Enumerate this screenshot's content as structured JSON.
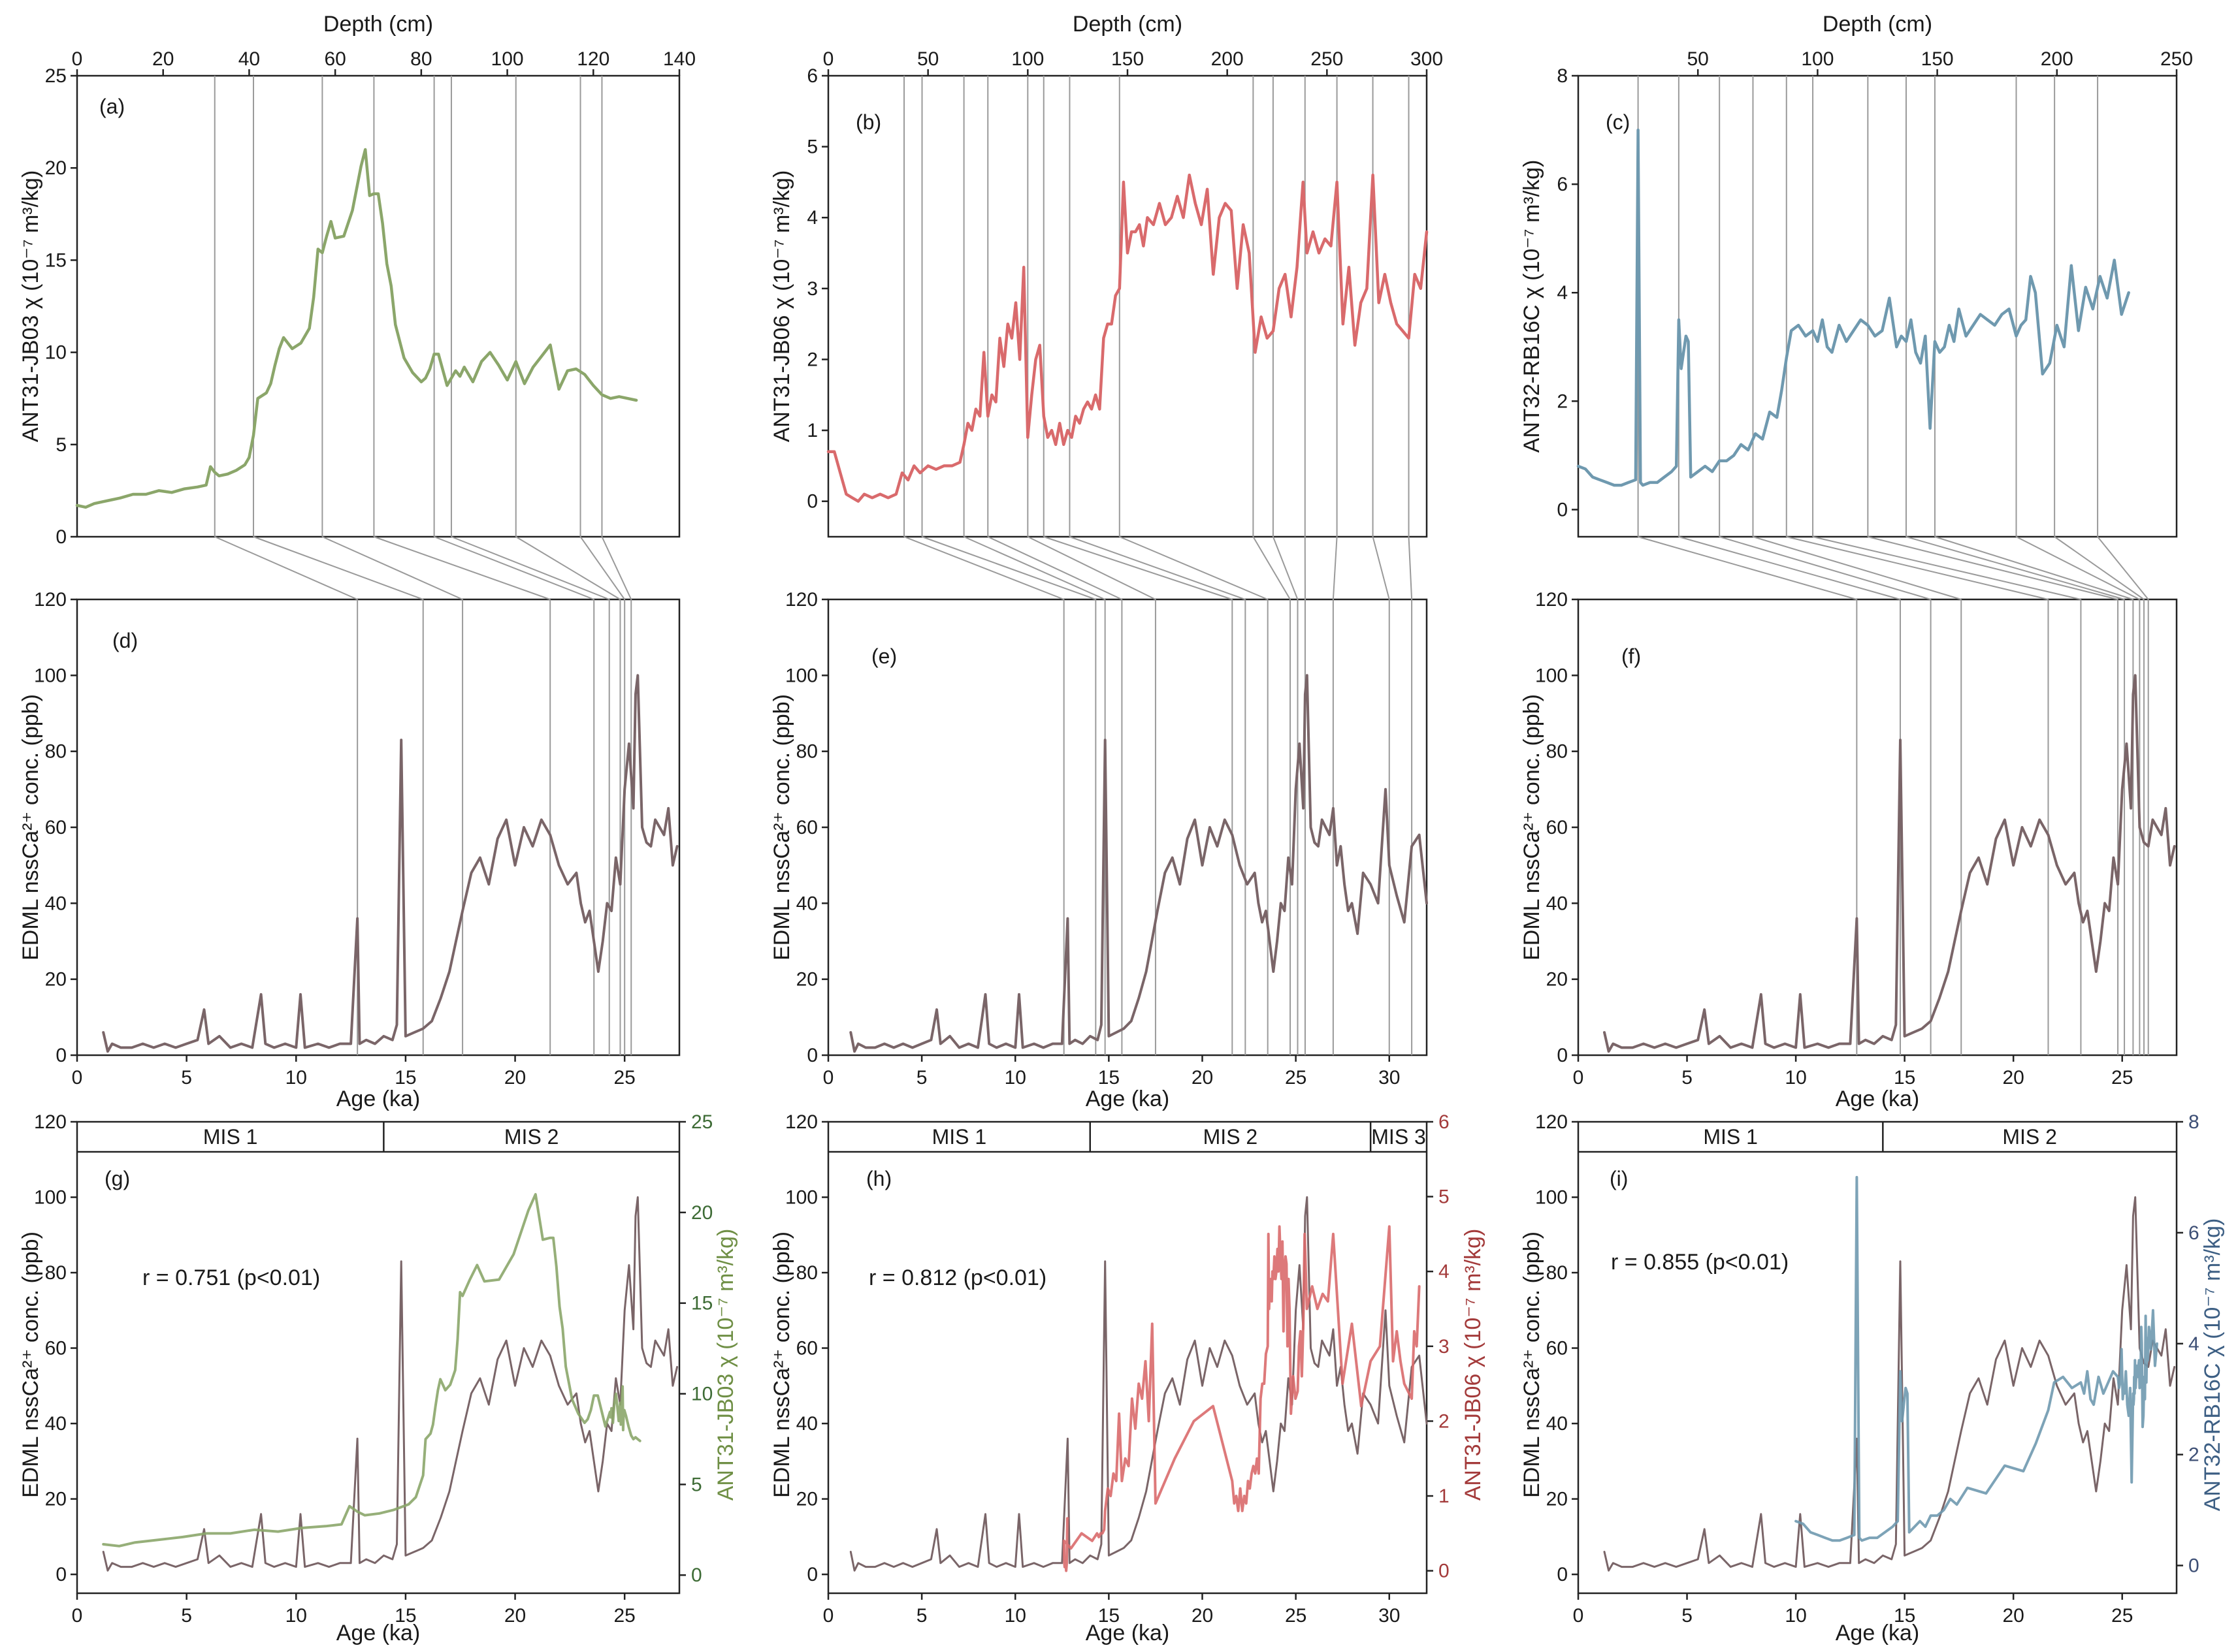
{
  "chart_data": [
    {
      "panel": "a",
      "type": "line",
      "label": "(a)",
      "xlabel": "Depth (cm)",
      "xlim": [
        0,
        140
      ],
      "xticks": [
        0,
        20,
        40,
        60,
        80,
        100,
        120,
        140
      ],
      "ylabel": "ANT31-JB03 χ (10⁻⁷ m³/kg)",
      "ylim": [
        0,
        25
      ],
      "yticks": [
        0,
        5,
        10,
        15,
        20,
        25
      ],
      "color": "#8BA66A",
      "x": [
        0,
        2,
        4,
        6,
        8,
        10,
        13,
        16,
        19,
        22,
        25,
        28,
        30,
        31,
        32,
        33,
        35,
        37,
        39,
        40,
        41,
        42,
        44,
        45,
        46,
        47,
        48,
        50,
        52,
        54,
        55,
        56,
        57,
        58,
        59,
        60,
        62,
        64,
        66,
        67,
        68,
        69,
        70,
        71,
        72,
        73,
        74,
        76,
        78,
        80,
        81,
        82,
        83,
        84,
        86,
        88,
        89,
        90,
        92,
        94,
        96,
        98,
        100,
        102,
        104,
        106,
        108,
        110,
        112,
        114,
        116,
        118,
        119,
        120,
        122,
        124,
        126,
        128,
        130
      ],
      "values": [
        1.7,
        1.6,
        1.8,
        1.9,
        2.0,
        2.1,
        2.3,
        2.3,
        2.5,
        2.4,
        2.6,
        2.7,
        2.8,
        3.8,
        3.5,
        3.3,
        3.4,
        3.6,
        3.9,
        4.3,
        5.5,
        7.5,
        7.8,
        8.3,
        9.3,
        10.2,
        10.8,
        10.2,
        10.5,
        11.3,
        13.0,
        15.6,
        15.4,
        16.3,
        17.1,
        16.2,
        16.3,
        17.7,
        20.1,
        21.0,
        18.5,
        18.6,
        18.6,
        17.0,
        14.8,
        13.6,
        11.5,
        9.7,
        8.9,
        8.4,
        8.6,
        9.1,
        9.9,
        9.9,
        8.2,
        9.0,
        8.7,
        9.2,
        8.4,
        9.5,
        10.0,
        9.3,
        8.5,
        9.5,
        8.3,
        9.2,
        9.8,
        10.4,
        8.0,
        9.0,
        9.1,
        8.8,
        8.5,
        8.2,
        7.7,
        7.5,
        7.6,
        7.5,
        7.4
      ],
      "guides_depth": [
        32,
        41,
        57,
        69,
        83,
        87,
        102,
        117,
        122
      ],
      "guides_age": [
        12.8,
        15.8,
        17.6,
        21.6,
        23.6,
        24.3,
        24.8,
        25.0,
        25.3
      ]
    },
    {
      "panel": "b",
      "type": "line",
      "label": "(b)",
      "xlabel": "Depth (cm)",
      "xlim": [
        0,
        300
      ],
      "xticks": [
        0,
        50,
        100,
        150,
        200,
        250,
        300
      ],
      "ylabel": "ANT31-JB06 χ (10⁻⁷ m³/kg)",
      "ylim": [
        -0.5,
        6
      ],
      "yticks": [
        0,
        1,
        2,
        3,
        4,
        5,
        6
      ],
      "color": "#D96A6C",
      "x": [
        0,
        3,
        6,
        9,
        12,
        15,
        18,
        22,
        26,
        30,
        34,
        37,
        40,
        43,
        46,
        50,
        54,
        58,
        62,
        66,
        68,
        70,
        72,
        74,
        76,
        78,
        80,
        82,
        84,
        86,
        88,
        90,
        92,
        94,
        96,
        98,
        100,
        102,
        104,
        106,
        108,
        110,
        112,
        114,
        116,
        118,
        120,
        122,
        124,
        126,
        128,
        130,
        132,
        134,
        136,
        138,
        140,
        142,
        144,
        146,
        148,
        150,
        152,
        154,
        156,
        158,
        160,
        163,
        166,
        169,
        172,
        175,
        178,
        181,
        184,
        187,
        190,
        193,
        196,
        199,
        202,
        205,
        208,
        211,
        214,
        217,
        220,
        223,
        226,
        229,
        232,
        235,
        238,
        240,
        243,
        246,
        249,
        252,
        255,
        258,
        261,
        264,
        267,
        270,
        273,
        276,
        279,
        282,
        285,
        288,
        291,
        294,
        297,
        300
      ],
      "values": [
        0.7,
        0.7,
        0.4,
        0.1,
        0.05,
        0.0,
        0.1,
        0.05,
        0.1,
        0.05,
        0.1,
        0.4,
        0.3,
        0.5,
        0.4,
        0.5,
        0.45,
        0.5,
        0.5,
        0.55,
        0.8,
        1.1,
        1.0,
        1.3,
        1.2,
        2.1,
        1.2,
        1.5,
        1.4,
        2.3,
        1.9,
        2.5,
        2.3,
        2.8,
        2.0,
        3.3,
        0.9,
        1.5,
        2.0,
        2.2,
        1.2,
        0.9,
        1.0,
        0.8,
        1.1,
        0.8,
        1.0,
        0.9,
        1.2,
        1.1,
        1.3,
        1.4,
        1.3,
        1.5,
        1.3,
        2.3,
        2.5,
        2.5,
        2.9,
        3.0,
        4.5,
        3.5,
        3.8,
        3.8,
        3.9,
        3.6,
        4.0,
        3.9,
        4.2,
        3.9,
        4.0,
        4.3,
        4.0,
        4.6,
        4.2,
        3.9,
        4.4,
        3.2,
        4.0,
        4.2,
        4.1,
        3.0,
        3.9,
        3.5,
        2.1,
        2.6,
        2.3,
        2.4,
        3.0,
        3.2,
        2.6,
        3.3,
        4.5,
        3.5,
        3.8,
        3.5,
        3.7,
        3.6,
        4.5,
        2.5,
        3.3,
        2.2,
        2.8,
        3.0,
        4.6,
        2.8,
        3.2,
        2.8,
        2.5,
        2.4,
        2.3,
        3.2,
        3.0,
        3.8
      ],
      "guides_depth": [
        38,
        47,
        68,
        80,
        100,
        108,
        121,
        146,
        213,
        223,
        239,
        255,
        273,
        291
      ],
      "guides_age": [
        12.6,
        14.3,
        14.8,
        15.7,
        17.5,
        21.6,
        22.3,
        23.5,
        24.7,
        25.1,
        25.5,
        27.0,
        30.0,
        31.2
      ]
    },
    {
      "panel": "c",
      "type": "line",
      "label": "(c)",
      "xlabel": "Depth (cm)",
      "xlim": [
        0,
        250
      ],
      "xticks": [
        50,
        100,
        150,
        200,
        250
      ],
      "ylabel": "ANT32-RB16C χ (10⁻⁷ m³/kg)",
      "ylim": [
        -0.5,
        8
      ],
      "yticks": [
        0,
        2,
        4,
        6,
        8
      ],
      "color": "#6F99AF",
      "x": [
        0,
        3,
        6,
        9,
        12,
        15,
        18,
        21,
        24,
        25,
        26,
        27,
        30,
        33,
        36,
        39,
        41,
        42,
        43,
        45,
        46,
        47,
        50,
        53,
        56,
        59,
        62,
        65,
        68,
        71,
        74,
        77,
        80,
        83,
        85,
        87,
        89,
        92,
        95,
        98,
        100,
        102,
        104,
        106,
        109,
        112,
        115,
        118,
        121,
        124,
        127,
        130,
        133,
        135,
        137,
        139,
        141,
        143,
        145,
        147,
        149,
        151,
        153,
        155,
        157,
        159,
        162,
        165,
        168,
        171,
        174,
        177,
        180,
        183,
        185,
        187,
        189,
        191,
        194,
        197,
        200,
        203,
        206,
        209,
        212,
        215,
        218,
        221,
        224,
        227,
        230
      ],
      "values": [
        0.8,
        0.75,
        0.6,
        0.55,
        0.5,
        0.45,
        0.45,
        0.5,
        0.55,
        7.0,
        0.5,
        0.45,
        0.5,
        0.5,
        0.6,
        0.7,
        0.8,
        3.5,
        2.6,
        3.2,
        3.1,
        0.6,
        0.7,
        0.8,
        0.7,
        0.9,
        0.9,
        1.0,
        1.2,
        1.1,
        1.4,
        1.3,
        1.8,
        1.7,
        2.2,
        2.8,
        3.3,
        3.4,
        3.2,
        3.3,
        3.1,
        3.5,
        3.0,
        2.9,
        3.4,
        3.1,
        3.3,
        3.5,
        3.4,
        3.2,
        3.3,
        3.9,
        3.0,
        3.2,
        3.1,
        3.5,
        2.9,
        2.7,
        3.2,
        1.5,
        3.1,
        2.9,
        3.0,
        3.4,
        3.1,
        3.7,
        3.2,
        3.4,
        3.6,
        3.5,
        3.4,
        3.6,
        3.7,
        3.2,
        3.4,
        3.5,
        4.3,
        4.0,
        2.5,
        2.7,
        3.4,
        3.0,
        4.5,
        3.3,
        4.1,
        3.7,
        4.3,
        3.9,
        4.6,
        3.6,
        4.0
      ],
      "guides_depth": [
        25,
        42,
        59,
        73,
        87,
        98,
        121,
        137,
        149,
        183,
        199,
        217
      ],
      "guides_age": [
        12.8,
        14.8,
        16.2,
        17.6,
        21.6,
        23.1,
        24.8,
        25.1,
        25.5,
        25.8,
        26.0,
        26.2
      ]
    }
  ],
  "panels": {
    "a": {
      "top_xlabel": "Depth (cm)",
      "letter": "(a)"
    },
    "b": {
      "top_xlabel": "Depth (cm)",
      "letter": "(b)"
    },
    "c": {
      "top_xlabel": "Depth (cm)",
      "letter": "(c)"
    },
    "d": {
      "letter": "(d)",
      "xlabel": "Age (ka)",
      "ylabel": "EDML nssCa²⁺ conc. (ppb)"
    },
    "e": {
      "letter": "(e)",
      "xlabel": "Age (ka)",
      "ylabel": "EDML nssCa²⁺ conc. (ppb)"
    },
    "f": {
      "letter": "(f)",
      "xlabel": "Age (ka)",
      "ylabel": "EDML nssCa²⁺ conc. (ppb)"
    },
    "g": {
      "letter": "(g)",
      "xlabel": "Age (ka)",
      "ylabel": "EDML nssCa²⁺ conc. (ppb)",
      "ylabel_right": "ANT31-JB03 χ (10⁻⁷ m³/kg)",
      "annotation": "r = 0.751 (p<0.01)",
      "mis": [
        "MIS 1",
        "MIS 2"
      ]
    },
    "h": {
      "letter": "(h)",
      "xlabel": "Age (ka)",
      "ylabel": "EDML nssCa²⁺ conc. (ppb)",
      "ylabel_right": "ANT31-JB06 χ (10⁻⁷ m³/kg)",
      "annotation": "r = 0.812 (p<0.01)",
      "mis": [
        "MIS 1",
        "MIS 2",
        "MIS 3"
      ]
    },
    "i": {
      "letter": "(i)",
      "xlabel": "Age (ka)",
      "ylabel": "EDML nssCa²⁺ conc. (ppb)",
      "ylabel_right": "ANT32-RB16C χ (10⁻⁷ m³/kg)",
      "annotation": "r = 0.855 (p<0.01)",
      "mis": [
        "MIS 1",
        "MIS 2"
      ]
    }
  },
  "edml": {
    "type": "line",
    "color": "#7A6568",
    "xlabel": "Age (ka)",
    "ylabel": "EDML nssCa²⁺ conc. (ppb)",
    "ylim": [
      0,
      120
    ],
    "yticks": [
      0,
      20,
      40,
      60,
      80,
      100,
      120
    ],
    "x": [
      1.2,
      1.4,
      1.6,
      2,
      2.5,
      3,
      3.5,
      4,
      4.5,
      5,
      5.5,
      5.8,
      6,
      6.5,
      7,
      7.5,
      8,
      8.4,
      8.6,
      9,
      9.5,
      10,
      10.2,
      10.4,
      11,
      11.5,
      12,
      12.5,
      12.8,
      12.9,
      13.2,
      13.6,
      14,
      14.4,
      14.6,
      14.8,
      15,
      15.4,
      15.8,
      16.2,
      16.6,
      17,
      17.3,
      17.6,
      18,
      18.4,
      18.8,
      19.2,
      19.6,
      20,
      20.4,
      20.8,
      21.2,
      21.6,
      22,
      22.4,
      22.8,
      23,
      23.2,
      23.4,
      23.6,
      23.8,
      24,
      24.2,
      24.4,
      24.6,
      24.8,
      25,
      25.2,
      25.4,
      25.5,
      25.6,
      25.8,
      26,
      26.2,
      26.4,
      26.6,
      26.8,
      27,
      27.2,
      27.4,
      27.6,
      27.8,
      28,
      28.3,
      28.6,
      29,
      29.4,
      29.8,
      30,
      30.4,
      30.8,
      31.2,
      31.6,
      32
    ],
    "values": [
      6,
      1,
      3,
      2,
      2,
      3,
      2,
      3,
      2,
      3,
      4,
      12,
      3,
      5,
      2,
      3,
      2,
      16,
      3,
      2,
      3,
      2,
      16,
      2,
      3,
      2,
      3,
      3,
      36,
      3,
      4,
      3,
      5,
      4,
      8,
      83,
      5,
      6,
      7,
      9,
      15,
      22,
      30,
      38,
      48,
      52,
      45,
      57,
      62,
      50,
      60,
      55,
      62,
      58,
      50,
      45,
      48,
      40,
      35,
      38,
      30,
      22,
      30,
      40,
      38,
      52,
      45,
      70,
      82,
      65,
      95,
      100,
      60,
      56,
      55,
      62,
      60,
      58,
      65,
      50,
      55,
      45,
      38,
      40,
      32,
      48,
      45,
      40,
      70,
      50,
      42,
      35,
      55,
      58,
      40
    ],
    "xlim_de": [
      0,
      27.5
    ],
    "xlim_e": [
      0,
      32
    ]
  }
}
